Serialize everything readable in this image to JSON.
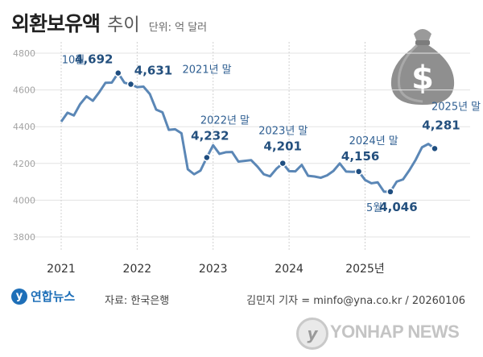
{
  "title": {
    "main": "외환보유액",
    "sub": "추이",
    "unit": "단위: 억 달러"
  },
  "chart_data": {
    "type": "line",
    "ylim": [
      3800,
      4800
    ],
    "yticks": [
      "3800",
      "4000",
      "4200",
      "4400",
      "4600",
      "4800"
    ],
    "xticks": [
      "2021",
      "2022",
      "2023",
      "2024",
      "2025년"
    ],
    "grid": true,
    "series": [
      {
        "x": [
          "2021-01",
          "2021-02",
          "2021-03",
          "2021-04",
          "2021-05",
          "2021-06",
          "2021-07",
          "2021-08",
          "2021-09",
          "2021-10",
          "2021-11",
          "2021-12",
          "2022-01",
          "2022-02",
          "2022-03",
          "2022-04",
          "2022-05",
          "2022-06",
          "2022-07",
          "2022-08",
          "2022-09",
          "2022-10",
          "2022-11",
          "2022-12",
          "2023-01",
          "2023-02",
          "2023-03",
          "2023-04",
          "2023-05",
          "2023-06",
          "2023-07",
          "2023-08",
          "2023-09",
          "2023-10",
          "2023-11",
          "2023-12",
          "2024-01",
          "2024-02",
          "2024-03",
          "2024-04",
          "2024-05",
          "2024-06",
          "2024-07",
          "2024-08",
          "2024-09",
          "2024-10",
          "2024-11",
          "2024-12",
          "2025-01",
          "2025-02",
          "2025-03",
          "2025-04",
          "2025-05",
          "2025-06",
          "2025-07",
          "2025-08",
          "2025-09",
          "2025-10",
          "2025-11",
          "2025-12"
        ],
        "values": [
          4427,
          4476,
          4461,
          4523,
          4565,
          4541,
          4587,
          4639,
          4640,
          4692,
          4639,
          4631,
          4615,
          4618,
          4578,
          4493,
          4478,
          4383,
          4386,
          4364,
          4168,
          4141,
          4161,
          4232,
          4299,
          4252,
          4261,
          4262,
          4210,
          4214,
          4218,
          4183,
          4141,
          4130,
          4171,
          4201,
          4158,
          4157,
          4192,
          4133,
          4129,
          4122,
          4135,
          4159,
          4200,
          4156,
          4154,
          4156,
          4110,
          4092,
          4097,
          4046,
          4046,
          4101,
          4113,
          4163,
          4220,
          4288,
          4306,
          4281
        ]
      }
    ],
    "annotations": [
      {
        "x": "2021-10",
        "value": 4692,
        "prefix": "10월",
        "label": "4,692"
      },
      {
        "x": "2021-12",
        "value": 4631,
        "label": "4,631",
        "suffix": "2021년 말"
      },
      {
        "x": "2022-12",
        "value": 4232,
        "label": "4,232",
        "prefix": "2022년 말"
      },
      {
        "x": "2023-12",
        "value": 4201,
        "label": "4,201",
        "prefix": "2023년 말"
      },
      {
        "x": "2024-12",
        "value": 4156,
        "label": "4,156",
        "prefix": "2024년 말"
      },
      {
        "x": "2025-05",
        "value": 4046,
        "label": "4,046",
        "prefix": "5월"
      },
      {
        "x": "2025-12",
        "value": 4281,
        "label": "4,281",
        "prefix": "2025년 말"
      }
    ]
  },
  "footer": {
    "logo_text": "연합뉴스",
    "source": "자료: 한국은행",
    "credit": "김민지 기자 = minfo@yna.co.kr / 20260106"
  },
  "watermark": {
    "text": "YONHAP NEWS",
    "mark": "y"
  },
  "icon": "money-bag-icon",
  "colors": {
    "line": "#5b87b6",
    "marker": "#1f4e80",
    "label": "#2f5f92",
    "grid": "#e3e3e3"
  }
}
